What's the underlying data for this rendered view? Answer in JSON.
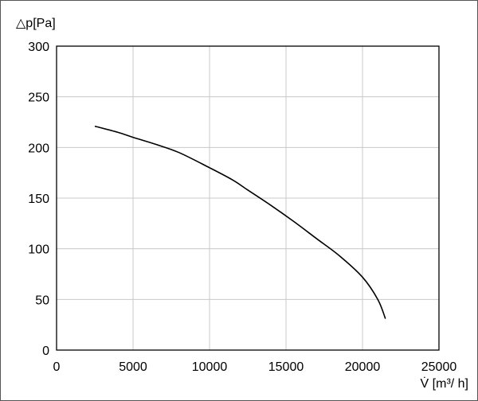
{
  "chart_data": {
    "type": "line",
    "title": "",
    "xlabel": "V̇ [m³/ h]",
    "ylabel": "△p[Pa]",
    "xlim": [
      0,
      25000
    ],
    "ylim": [
      0,
      300
    ],
    "xticks": [
      0,
      5000,
      10000,
      15000,
      20000,
      25000
    ],
    "yticks": [
      0,
      50,
      100,
      150,
      200,
      250,
      300
    ],
    "grid": true,
    "colors": {
      "line": "#000000",
      "grid": "#c8c8c8",
      "axes": "#000000"
    },
    "series": [
      {
        "x": [
          2500,
          4000,
          5000,
          6500,
          8000,
          10000,
          11500,
          12500,
          14000,
          15500,
          17000,
          18500,
          20000,
          21000,
          21500
        ],
        "y": [
          221,
          215,
          210,
          203,
          195,
          180,
          168,
          158,
          143,
          127,
          110,
          93,
          72,
          50,
          31
        ]
      }
    ]
  }
}
